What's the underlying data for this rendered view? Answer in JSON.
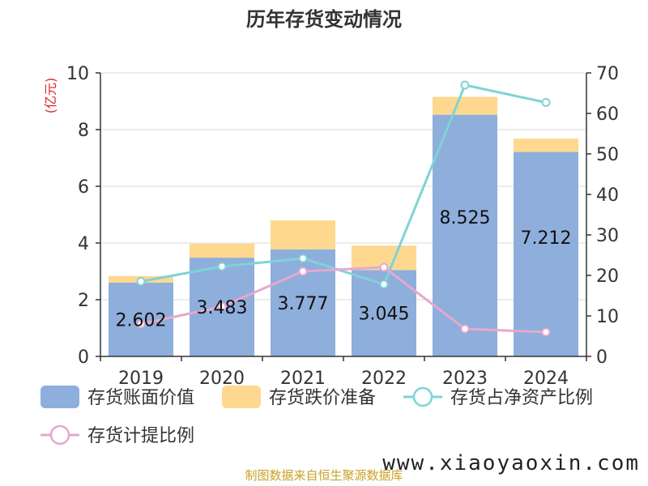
{
  "chart_data": {
    "type": "bar",
    "title": "历年存货变动情况",
    "categories": [
      "2019",
      "2020",
      "2021",
      "2022",
      "2023",
      "2024"
    ],
    "left_axis": {
      "unit": "(亿元)",
      "ylim": [
        0,
        10
      ],
      "ticks": [
        "0",
        "2",
        "4",
        "6",
        "8",
        "10"
      ]
    },
    "right_axis": {
      "unit": "%",
      "ylim": [
        0,
        70
      ],
      "ticks": [
        "0",
        "10",
        "20",
        "30",
        "40",
        "50",
        "60",
        "70"
      ]
    },
    "bar_labels": [
      "2.602",
      "3.483",
      "3.777",
      "3.045",
      "8.525",
      "7.212"
    ],
    "series": [
      {
        "name": "存货账面价值",
        "kind": "bar",
        "axis": "left",
        "color": "#8eaedc",
        "values": [
          2.602,
          3.483,
          3.777,
          3.045,
          8.525,
          7.212
        ]
      },
      {
        "name": "存货跌价准备",
        "kind": "bar-stacked",
        "axis": "left",
        "color": "#fdd88e",
        "values": [
          0.23,
          0.49,
          1.02,
          0.86,
          0.63,
          0.47
        ]
      },
      {
        "name": "存货占净资产比例",
        "kind": "line",
        "axis": "right",
        "color": "#7fd3d6",
        "values": [
          18.5,
          22.2,
          24.2,
          17.8,
          67.0,
          62.7
        ]
      },
      {
        "name": "存货计提比例",
        "kind": "line",
        "axis": "right",
        "color": "#e6a8cf",
        "values": [
          8.0,
          12.3,
          21.0,
          22.0,
          6.8,
          6.0
        ]
      }
    ],
    "source": "制图数据来自恒生聚源数据库",
    "watermark": "www.xiaoyaoxin.com"
  }
}
